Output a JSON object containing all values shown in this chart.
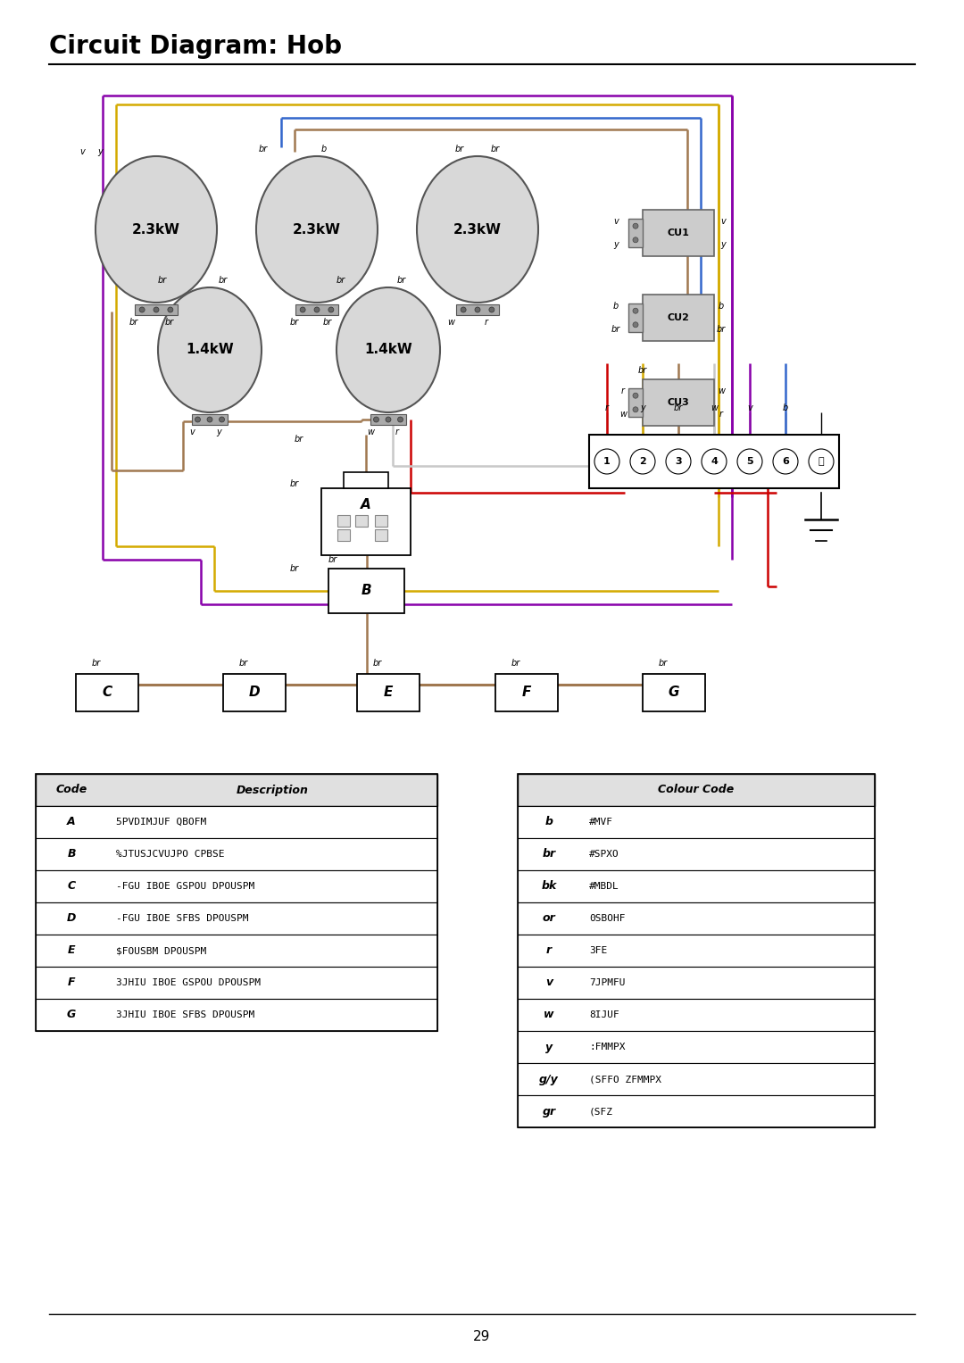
{
  "title": "Circuit Diagram: Hob",
  "page_number": "29",
  "bg_color": "#ffffff",
  "title_fontsize": 20,
  "code_table": {
    "headers": [
      "Code",
      "Description"
    ],
    "rows": [
      [
        "A",
        "5PVDIMJUF QBOFM"
      ],
      [
        "B",
        "%JTUSJCVUJPO CPBSE"
      ],
      [
        "C",
        "-FGU IBOE GSPOU DPOUSPM"
      ],
      [
        "D",
        "-FGU IBOE SFBS DPOUSPM"
      ],
      [
        "E",
        "$FOUSBM DPOUSPM"
      ],
      [
        "F",
        "3JHIU IBOE GSPOU DPOUSPM"
      ],
      [
        "G",
        "3JHIU IBOE SFBS DPOUSPM"
      ]
    ]
  },
  "colour_table": {
    "header": "Colour Code",
    "rows": [
      [
        "b",
        "#MVF"
      ],
      [
        "br",
        "#SPXO"
      ],
      [
        "bk",
        "#MBDL"
      ],
      [
        "or",
        "0SBOHF"
      ],
      [
        "r",
        "3FE"
      ],
      [
        "v",
        "7JPMFU"
      ],
      [
        "w",
        "8IJUF"
      ],
      [
        "y",
        ":FMMPX"
      ],
      [
        "g/y",
        "(SFFO ZFMMPX"
      ],
      [
        "gr",
        "(SFZ"
      ]
    ]
  },
  "wire_colors": {
    "blue": "#3366cc",
    "brown": "#a07850",
    "red": "#cc0000",
    "yellow": "#d4aa00",
    "violet": "#8800aa",
    "white": "#c8c8c8",
    "gray": "#999999"
  }
}
